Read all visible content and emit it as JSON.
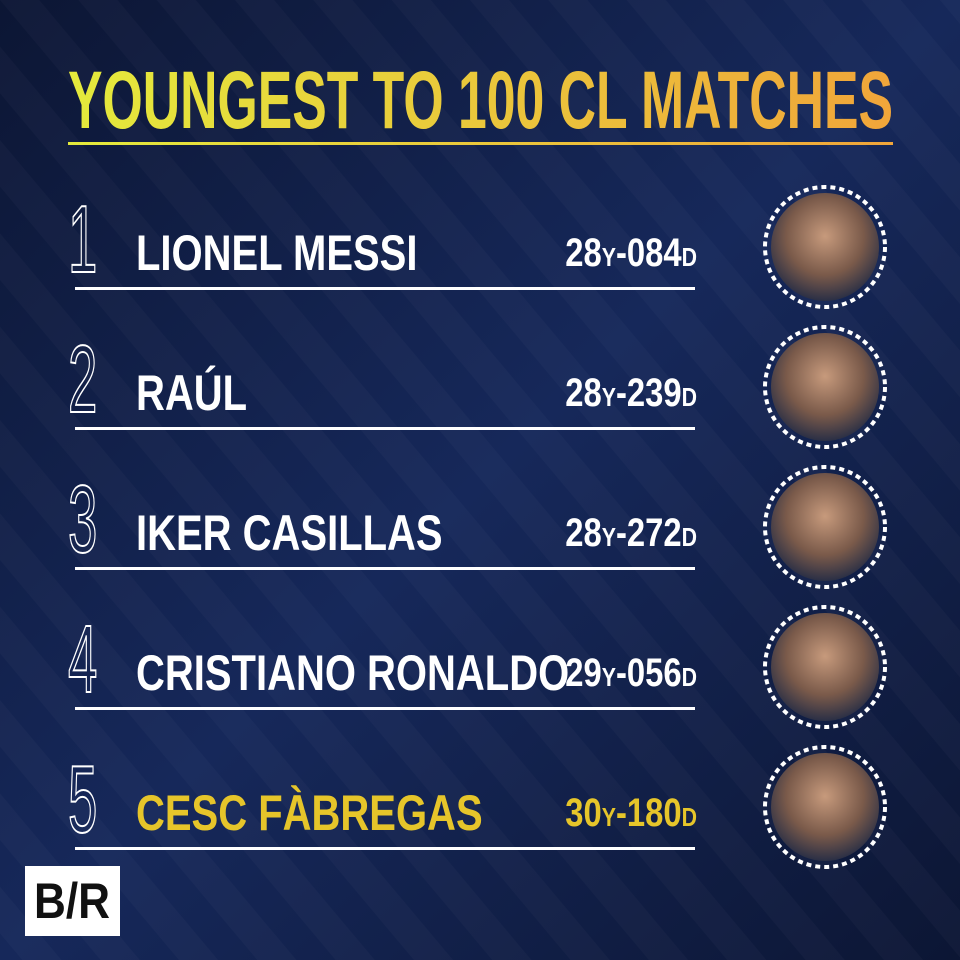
{
  "header": {
    "title": "YOUNGEST TO 100 CL MATCHES"
  },
  "rows": [
    {
      "rank": 1,
      "name": "LIONEL MESSI",
      "age": {
        "years": "28",
        "year_unit": "Y",
        "days": "-084",
        "day_unit": "D"
      },
      "highlight": false
    },
    {
      "rank": 2,
      "name": "RAÚL",
      "age": {
        "years": "28",
        "year_unit": "Y",
        "days": "-239",
        "day_unit": "D"
      },
      "highlight": false
    },
    {
      "rank": 3,
      "name": "IKER CASILLAS",
      "age": {
        "years": "28",
        "year_unit": "Y",
        "days": "-272",
        "day_unit": "D"
      },
      "highlight": false
    },
    {
      "rank": 4,
      "name": "CRISTIANO RONALDO",
      "age": {
        "years": "29",
        "year_unit": "Y",
        "days": "-056",
        "day_unit": "D"
      },
      "highlight": false
    },
    {
      "rank": 5,
      "name": "CESC FÀBREGAS",
      "age": {
        "years": "30",
        "year_unit": "Y",
        "days": "-180",
        "day_unit": "D"
      },
      "highlight": true
    }
  ],
  "footer": {
    "logo": "B/R"
  }
}
